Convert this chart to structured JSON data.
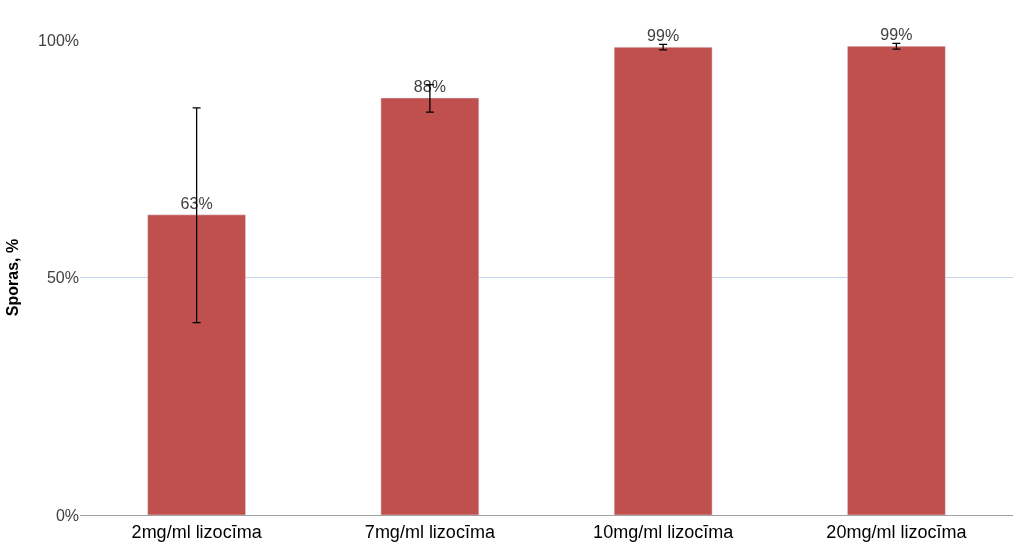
{
  "chart_data": {
    "type": "bar",
    "ylabel": "Sporas, %",
    "categories": [
      "2mg/ml lizocīma",
      "7mg/ml lizocīma",
      "10mg/ml lizocīma",
      "20mg/ml lizocīma"
    ],
    "values": [
      63.2,
      87.8,
      98.5,
      98.7
    ],
    "errors": [
      [
        40.5,
        85.7
      ],
      [
        84.8,
        90.6
      ],
      [
        97.9,
        99.1
      ],
      [
        98.1,
        99.3
      ]
    ],
    "value_labels": [
      "63%",
      "88%",
      "99%",
      "99%"
    ],
    "color": "#c0504d",
    "ylim": [
      0,
      100
    ],
    "yticks": [
      {
        "value": 0,
        "label": "0%"
      },
      {
        "value": 50,
        "label": "50%"
      },
      {
        "value": 100,
        "label": "100%"
      }
    ],
    "grid": "y"
  }
}
